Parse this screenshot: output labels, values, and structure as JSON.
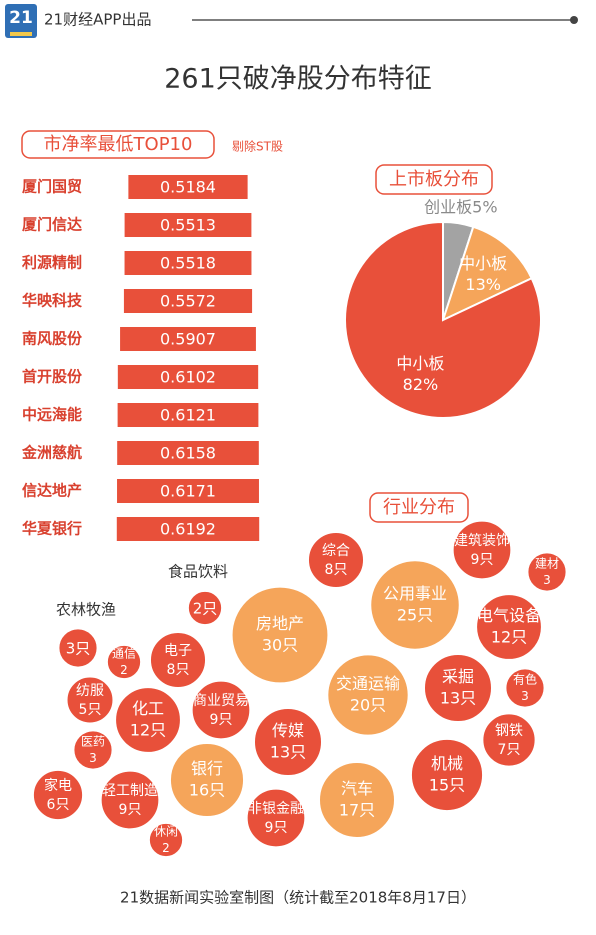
{
  "header": {
    "logo": "21",
    "brand": "21财经APP出品"
  },
  "title": "261只破净股分布特征",
  "footer": "21数据新闻实验室制图（统计截至2018年8月17日）",
  "chart_data": [
    {
      "type": "bar",
      "title": "市净率最低TOP10",
      "subtitle": "剔除ST股",
      "categories": [
        "厦门国贸",
        "厦门信达",
        "利源精制",
        "华映科技",
        "南风股份",
        "首开股份",
        "中远海能",
        "金洲慈航",
        "信达地产",
        "华夏银行"
      ],
      "values": [
        0.5184,
        0.5513,
        0.5518,
        0.5572,
        0.5907,
        0.6102,
        0.6121,
        0.6158,
        0.6171,
        0.6192
      ],
      "color": "#e8503a"
    },
    {
      "type": "pie",
      "title": "上市板分布",
      "categories": [
        "创业板",
        "中小板",
        "中小板"
      ],
      "values": [
        5,
        13,
        82
      ],
      "value_labels": [
        "5%",
        "13%",
        "82%"
      ],
      "colors": [
        "#a3a3a3",
        "#f5a55a",
        "#e8503a"
      ]
    },
    {
      "type": "bubble",
      "title": "行业分布",
      "categories": [
        "房地产",
        "公用事业",
        "交通运输",
        "汽车",
        "银行",
        "机械",
        "采掘",
        "传媒",
        "电气设备",
        "化工",
        "建筑装饰",
        "商业贸易",
        "轻工制造",
        "非银金融",
        "综合",
        "电子",
        "家电",
        "纺服",
        "钢铁",
        "有色",
        "建材",
        "农林牧渔",
        "医药",
        "通信",
        "食品饮料",
        "休闲"
      ],
      "values": [
        30,
        25,
        20,
        17,
        16,
        15,
        13,
        13,
        12,
        12,
        9,
        9,
        9,
        9,
        8,
        8,
        6,
        5,
        7,
        3,
        3,
        3,
        3,
        2,
        2,
        2
      ],
      "value_labels": [
        "30只",
        "25只",
        "20只",
        "17只",
        "16只",
        "15只",
        "13只",
        "13只",
        "12只",
        "12只",
        "9只",
        "9只",
        "9只",
        "9只",
        "8只",
        "8只",
        "6只",
        "5只",
        "7只",
        "3",
        "3",
        "3只",
        "3",
        "2",
        "2只",
        "2"
      ],
      "colors": [
        "#f5a55a",
        "#f5a55a",
        "#f5a55a",
        "#f5a55a",
        "#f5a55a",
        "#e8503a",
        "#e8503a",
        "#e8503a",
        "#e8503a",
        "#e8503a",
        "#e8503a",
        "#e8503a",
        "#e8503a",
        "#e8503a",
        "#e8503a",
        "#e8503a",
        "#e8503a",
        "#e8503a",
        "#e8503a",
        "#e8503a",
        "#e8503a",
        "#e8503a",
        "#e8503a",
        "#e8503a",
        "#e8503a",
        "#e8503a"
      ]
    }
  ]
}
